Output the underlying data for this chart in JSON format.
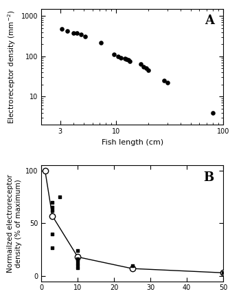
{
  "panel_A": {
    "title": "A",
    "xlabel": "Fish length (cm)",
    "ylabel": "Electroreceptor density (mm$^{-2}$)",
    "scatter_x": [
      3.1,
      3.5,
      4.0,
      4.3,
      4.7,
      5.1,
      7.2,
      9.5,
      10.5,
      11.0,
      12.0,
      12.5,
      13.0,
      13.5,
      17.0,
      18.0,
      19.0,
      20.0,
      28.0,
      30.0,
      80.0
    ],
    "scatter_y": [
      480,
      430,
      380,
      370,
      350,
      310,
      220,
      110,
      100,
      90,
      88,
      85,
      80,
      75,
      65,
      55,
      50,
      45,
      25,
      22,
      4
    ],
    "xlim_log": [
      2,
      100
    ],
    "ylim_log": [
      2,
      1500
    ],
    "xticks": [
      3,
      10,
      100
    ],
    "yticks": [
      10,
      100,
      1000
    ]
  },
  "panel_B": {
    "title": "B",
    "xlabel": "",
    "ylabel": "Normailzed electroreceptor\ndensity (% of maximum)",
    "open_x": [
      1,
      3,
      10,
      25,
      50
    ],
    "open_y": [
      100,
      57,
      18,
      7,
      3
    ],
    "filled_x": [
      3,
      3,
      3,
      3,
      3,
      5,
      10,
      10,
      10,
      10,
      10,
      25,
      50
    ],
    "filled_y": [
      70,
      65,
      62,
      40,
      27,
      75,
      24,
      16,
      14,
      11,
      8,
      10,
      3
    ],
    "xlim": [
      0,
      50
    ],
    "ylim": [
      -5,
      105
    ],
    "xticks": [
      0,
      10,
      20,
      30,
      40,
      50
    ],
    "yticks": [
      0,
      50,
      100
    ]
  }
}
